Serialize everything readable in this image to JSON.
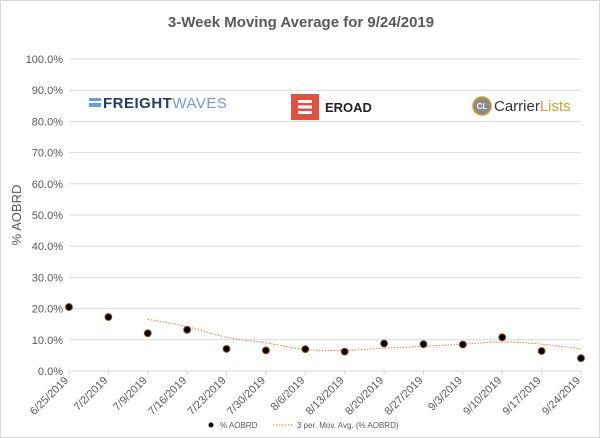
{
  "chart_data": {
    "type": "scatter",
    "title": "3-Week Moving Average for 9/24/2019",
    "ylabel": "% AOBRD",
    "xlabel": "",
    "ylim": [
      0,
      100
    ],
    "y_ticks": [
      "0.0%",
      "10.0%",
      "20.0%",
      "30.0%",
      "40.0%",
      "50.0%",
      "60.0%",
      "70.0%",
      "80.0%",
      "90.0%",
      "100.0%"
    ],
    "categories": [
      "6/25/2019",
      "7/2/2019",
      "7/9/2019",
      "7/16/2019",
      "7/23/2019",
      "7/30/2019",
      "8/6/2019",
      "8/13/2019",
      "8/20/2019",
      "8/27/2019",
      "9/3/2019",
      "9/10/2019",
      "9/17/2019",
      "9/24/2019"
    ],
    "series": [
      {
        "name": "% AOBRD",
        "kind": "scatter",
        "color": "#000000",
        "values": [
          20.5,
          17.3,
          12.1,
          13.2,
          7.1,
          6.6,
          7.0,
          6.2,
          8.8,
          8.6,
          8.5,
          10.8,
          6.4,
          4.1
        ]
      },
      {
        "name": "3 per. Mov. Avg. (% AOBRD)",
        "kind": "line",
        "color": "#ed7d31",
        "values": [
          null,
          null,
          16.6,
          14.2,
          10.8,
          9.0,
          6.9,
          6.6,
          7.3,
          7.9,
          8.6,
          9.3,
          8.6,
          7.1
        ]
      }
    ],
    "grid": true,
    "legend_position": "bottom"
  },
  "logos": {
    "freightwaves": {
      "part1": "FREIGHT",
      "part2": "WAVES"
    },
    "eroad": {
      "text": "EROAD"
    },
    "carrierlists": {
      "badge": "CL",
      "part1": "Carrier",
      "part2": "Lists"
    }
  },
  "colors": {
    "marker_fill": "#000000",
    "marker_stroke": "#8b4513",
    "trendline": "#ed7d31",
    "gridline": "#d9d9d9",
    "text": "#595959",
    "eroad_red": "#e0523f"
  }
}
